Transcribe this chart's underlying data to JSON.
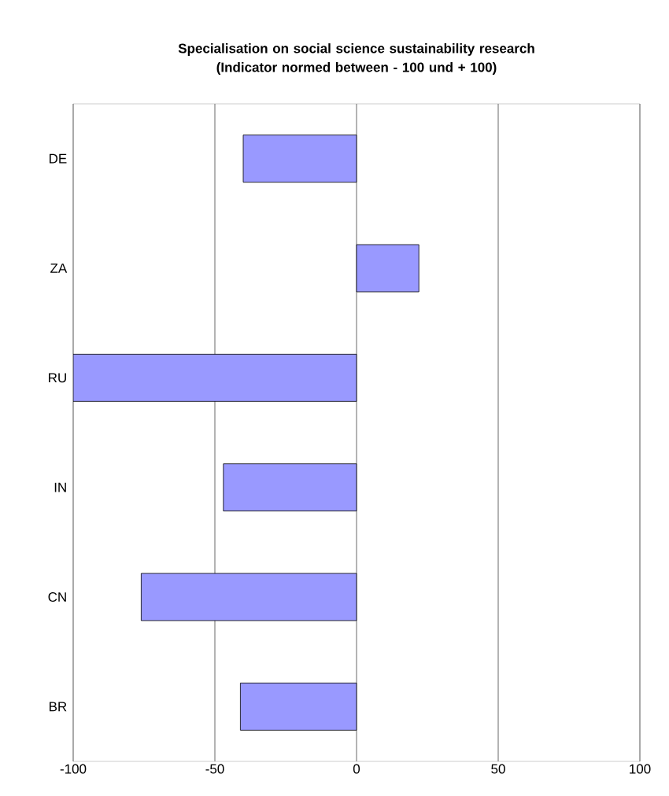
{
  "chart_data": {
    "type": "bar",
    "orientation": "horizontal",
    "title": "Specialisation on social science sustainability research",
    "subtitle": "(Indicator normed between - 100 und + 100)",
    "categories": [
      "DE",
      "ZA",
      "RU",
      "IN",
      "CN",
      "BR"
    ],
    "values": [
      -40,
      22,
      -100,
      -47,
      -76,
      -41
    ],
    "color": "#9999ff",
    "xlim": [
      -100,
      100
    ],
    "xticks": [
      -100,
      -50,
      0,
      50,
      100
    ],
    "grid": "x"
  }
}
